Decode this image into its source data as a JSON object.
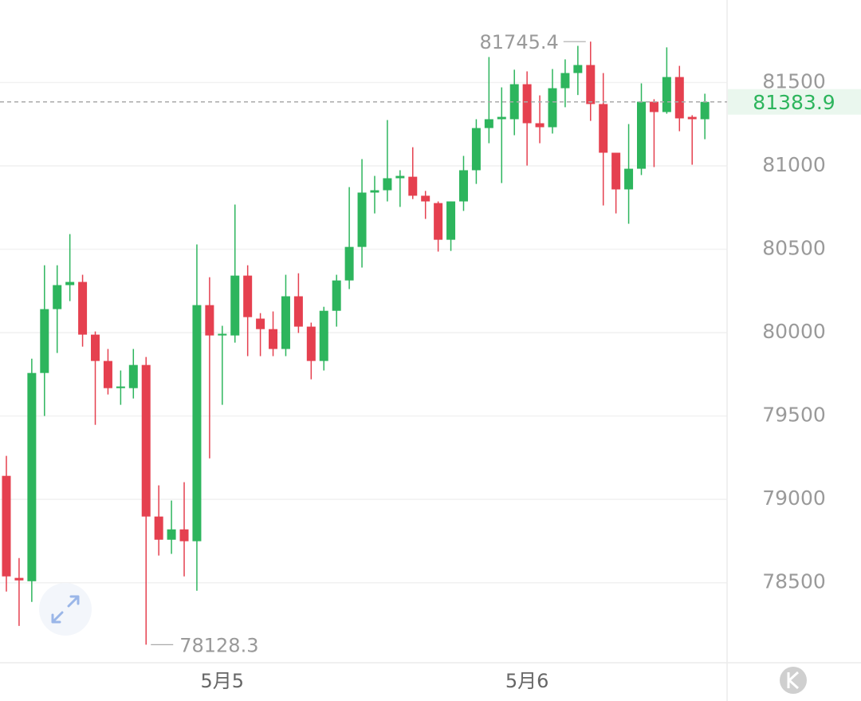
{
  "chart_data": {
    "type": "candlestick",
    "categories": [
      null,
      null,
      null,
      null,
      null,
      null,
      null,
      null,
      null,
      null,
      null,
      null,
      null,
      null,
      null,
      null,
      null,
      "5月5",
      null,
      null,
      null,
      null,
      null,
      null,
      null,
      null,
      null,
      null,
      null,
      null,
      null,
      null,
      null,
      null,
      null,
      null,
      null,
      null,
      null,
      null,
      null,
      "5月6",
      null,
      null,
      null,
      null,
      null,
      null,
      null,
      null,
      null,
      null,
      null,
      null,
      null,
      null
    ],
    "open": [
      79141,
      78529,
      78509,
      79758,
      80141,
      80285,
      80304,
      79988,
      79830,
      79667,
      79667,
      79806,
      78897,
      78758,
      78820,
      78749,
      80165,
      79983,
      79983,
      80342,
      80084,
      80021,
      79902,
      80218,
      80036,
      79830,
      80131,
      80313,
      80514,
      80840,
      80854,
      80926,
      80935,
      80821,
      80777,
      80557,
      80787,
      80974,
      81227,
      81280,
      81280,
      81490,
      81256,
      81232,
      81466,
      81557,
      81605,
      81371,
      81079,
      80859,
      80983,
      81385,
      81323,
      81533,
      81294,
      81280
    ],
    "high": [
      79261,
      78648,
      79844,
      80404,
      80404,
      80591,
      80347,
      80007,
      79902,
      79773,
      79902,
      79854,
      79084,
      78993,
      79103,
      80529,
      80332,
      80041,
      80768,
      80404,
      80117,
      80127,
      80347,
      80356,
      80060,
      80155,
      80347,
      80873,
      81041,
      80940,
      81275,
      80974,
      81112,
      80850,
      80787,
      80787,
      81060,
      81280,
      81653,
      81471,
      81577,
      81567,
      81423,
      81581,
      81639,
      81720,
      81745.4,
      81557,
      81079,
      81251,
      81495,
      81400,
      81711,
      81600,
      81304,
      81433
    ],
    "low": [
      78447,
      78241,
      78385,
      79500,
      79878,
      80189,
      79916,
      79447,
      79629,
      79567,
      79605,
      78128.3,
      78663,
      78673,
      78538,
      78452,
      79246,
      79567,
      79940,
      79859,
      79859,
      79859,
      79859,
      79998,
      79720,
      79773,
      80036,
      80261,
      80390,
      80715,
      80787,
      80754,
      80801,
      80682,
      80486,
      80490,
      80730,
      80892,
      81136,
      80897,
      81184,
      81002,
      81136,
      81194,
      81352,
      81425,
      81270,
      80763,
      80715,
      80653,
      80945,
      80993,
      81313,
      81208,
      81007,
      81160
    ],
    "close": [
      78538,
      78514,
      79758,
      80141,
      80285,
      80304,
      79988,
      79830,
      79667,
      79677,
      79806,
      78897,
      78758,
      78820,
      78749,
      80165,
      79983,
      79993,
      80342,
      80093,
      80021,
      79902,
      80218,
      80036,
      79830,
      80131,
      80313,
      80514,
      80840,
      80854,
      80926,
      80940,
      80821,
      80787,
      80557,
      80787,
      80974,
      81227,
      81280,
      81294,
      81490,
      81256,
      81232,
      81466,
      81557,
      81605,
      81371,
      81079,
      80859,
      80983,
      81385,
      81323,
      81533,
      81285,
      81280,
      81383.9
    ],
    "up_color": "#2db55d",
    "down_color": "#e5404f",
    "ylim": [
      78025,
      81995
    ],
    "yticks": [
      78500,
      79000,
      79500,
      80000,
      80500,
      81000,
      81500
    ],
    "grid": true
  }
}
